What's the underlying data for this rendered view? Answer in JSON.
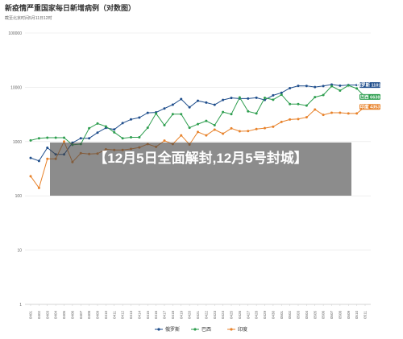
{
  "overlay": {
    "caption": "【12月5日全面解封,12月5号封城】"
  },
  "chart_data": {
    "type": "line",
    "title": "新疫情严重国家每日新增病例（对数图）",
    "subtitle": "截至北京时间5月11日12时",
    "yscale": "log",
    "ylim": [
      1,
      100000
    ],
    "yticks": [
      1,
      10,
      100,
      1000,
      10000,
      100000
    ],
    "ytick_labels": [
      "1",
      "10",
      "100",
      "1000",
      "10000",
      "100000"
    ],
    "grid": true,
    "legend_position": "bottom",
    "x": [
      "0401",
      "0402",
      "0403",
      "0404",
      "0405",
      "0406",
      "0407",
      "0408",
      "0409",
      "0410",
      "0411",
      "0412",
      "0413",
      "0414",
      "0415",
      "0416",
      "0417",
      "0418",
      "0419",
      "0420",
      "0421",
      "0422",
      "0423",
      "0424",
      "0425",
      "0426",
      "0427",
      "0428",
      "0429",
      "0430",
      "0501",
      "0502",
      "0503",
      "0504",
      "0505",
      "0506",
      "0507",
      "0508",
      "0509",
      "0510",
      "0511"
    ],
    "series": [
      {
        "name": "俄罗斯",
        "color": "#1f4e8c",
        "end_label": "俄罗斯 11012",
        "values": [
          500,
          440,
          770,
          580,
          580,
          950,
          1150,
          1150,
          1460,
          1790,
          1670,
          2190,
          2560,
          2770,
          3390,
          3450,
          4070,
          4780,
          6060,
          4270,
          5640,
          5230,
          4770,
          5850,
          6360,
          6200,
          6200,
          6410,
          5840,
          7100,
          7930,
          9620,
          10630,
          10580,
          10100,
          10550,
          11230,
          10700,
          11010,
          11010,
          11012
        ]
      },
      {
        "name": "巴西",
        "color": "#2e9e4f",
        "end_label": "巴西 6638",
        "values": [
          1050,
          1150,
          1180,
          1180,
          1180,
          870,
          900,
          1760,
          2150,
          1900,
          1480,
          1150,
          1200,
          1200,
          1800,
          3300,
          2000,
          3200,
          3200,
          1800,
          2100,
          2400,
          2000,
          3500,
          3200,
          6500,
          3600,
          3300,
          6400,
          5900,
          7300,
          4900,
          4900,
          4600,
          6600,
          7200,
          10500,
          8700,
          10800,
          9500,
          6638
        ]
      },
      {
        "name": "印度",
        "color": "#e8822a",
        "end_label": "印度 4353",
        "values": [
          230,
          140,
          480,
          480,
          1000,
          420,
          610,
          590,
          600,
          720,
          700,
          700,
          730,
          780,
          900,
          800,
          1040,
          900,
          1300,
          880,
          1500,
          1300,
          1660,
          1400,
          1750,
          1550,
          1560,
          1700,
          1770,
          1880,
          2300,
          2550,
          2600,
          2800,
          3900,
          3100,
          3400,
          3400,
          3300,
          3300,
          4353
        ]
      }
    ]
  }
}
